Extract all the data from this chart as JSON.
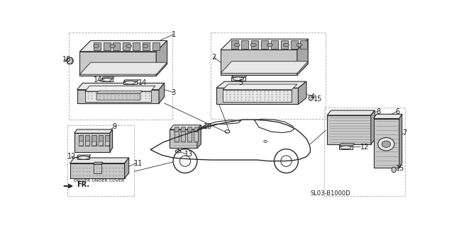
{
  "background_color": "#ffffff",
  "fig_width": 6.4,
  "fig_height": 3.18,
  "dpi": 100,
  "diagram_code": "SL03-B1000D",
  "driver_under_cover_label": "DRIVER UNDER COVER",
  "line_color": "#2a2a2a",
  "text_color": "#1a1a1a",
  "light_fill": "#e8e8e8",
  "medium_fill": "#c8c8c8",
  "dark_fill": "#a8a8a8",
  "hatch_color": "#999999",
  "leader_color": "#333333"
}
